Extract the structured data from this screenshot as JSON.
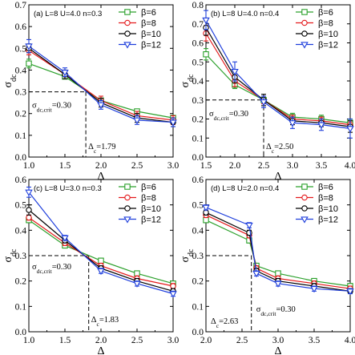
{
  "chart_data": [
    {
      "type": "line",
      "panel_label": "(a) L=8 U=4.0 n=0.3",
      "xlabel": "Δ",
      "ylabel": "σ",
      "ylabel_sub": "dc",
      "xlim": [
        1.0,
        3.0
      ],
      "ylim": [
        0.0,
        0.7
      ],
      "xticks": [
        "1.0",
        "1.5",
        "2.0",
        "2.5",
        "3.0"
      ],
      "yticks": [
        "0.0",
        "0.1",
        "0.2",
        "0.3",
        "0.4",
        "0.5",
        "0.6",
        "0.7"
      ],
      "crit_x": 1.79,
      "crit_y": 0.3,
      "crit_sigma_label": "σ",
      "crit_sigma_sub": "dc,crit",
      "crit_sigma_value": "=0.30",
      "crit_delta_label": "Δ",
      "crit_delta_sub": "c",
      "crit_delta_value": "=1.79",
      "legend_position": "top-right",
      "series": [
        {
          "name": "β=6",
          "color": "#2ca02c",
          "marker": "square",
          "x": [
            1.0,
            1.5,
            2.0,
            2.5,
            3.0
          ],
          "y": [
            0.43,
            0.37,
            0.26,
            0.21,
            0.18
          ],
          "err": [
            0.02,
            0.01,
            0.01,
            0.01,
            0.01
          ]
        },
        {
          "name": "β=8",
          "color": "#e41a1c",
          "marker": "circle",
          "x": [
            1.0,
            1.5,
            2.0,
            2.5,
            3.0
          ],
          "y": [
            0.49,
            0.38,
            0.26,
            0.19,
            0.17
          ],
          "err": [
            0.02,
            0.01,
            0.02,
            0.02,
            0.02
          ]
        },
        {
          "name": "β=10",
          "color": "#000000",
          "marker": "circle",
          "x": [
            1.0,
            1.5,
            2.0,
            2.5,
            3.0
          ],
          "y": [
            0.5,
            0.38,
            0.25,
            0.18,
            0.16
          ],
          "err": [
            0.02,
            0.02,
            0.02,
            0.02,
            0.02
          ]
        },
        {
          "name": "β=12",
          "color": "#1f3fdc",
          "marker": "triangle-down",
          "x": [
            1.0,
            1.5,
            2.0,
            2.5,
            3.0
          ],
          "y": [
            0.51,
            0.39,
            0.24,
            0.17,
            0.16
          ],
          "err": [
            0.03,
            0.02,
            0.02,
            0.02,
            0.02
          ]
        }
      ]
    },
    {
      "type": "line",
      "panel_label": "(b) L=8 U=4.0 n=0.4",
      "xlabel": "Δ",
      "ylabel": "σ",
      "ylabel_sub": "dc",
      "xlim": [
        1.5,
        4.0
      ],
      "ylim": [
        0.0,
        0.8
      ],
      "xticks": [
        "1.5",
        "2.0",
        "2.5",
        "3.0",
        "3.5",
        "4.0"
      ],
      "yticks": [
        "0.0",
        "0.1",
        "0.2",
        "0.3",
        "0.4",
        "0.5",
        "0.6",
        "0.7",
        "0.8"
      ],
      "crit_x": 2.5,
      "crit_y": 0.3,
      "crit_sigma_label": "σ",
      "crit_sigma_sub": "dc,crit",
      "crit_sigma_value": "=0.30",
      "crit_delta_label": "Δ",
      "crit_delta_sub": "c",
      "crit_delta_value": "=2.50",
      "legend_position": "top-right",
      "series": [
        {
          "name": "β=6",
          "color": "#2ca02c",
          "marker": "square",
          "x": [
            1.5,
            2.0,
            2.5,
            3.0,
            3.5,
            4.0
          ],
          "y": [
            0.54,
            0.38,
            0.3,
            0.21,
            0.2,
            0.18
          ],
          "err": [
            0.03,
            0.02,
            0.02,
            0.02,
            0.02,
            0.02
          ]
        },
        {
          "name": "β=8",
          "color": "#e41a1c",
          "marker": "circle",
          "x": [
            1.5,
            2.0,
            2.5,
            3.0,
            3.5,
            4.0
          ],
          "y": [
            0.65,
            0.4,
            0.3,
            0.2,
            0.19,
            0.17
          ],
          "err": [
            0.04,
            0.03,
            0.02,
            0.02,
            0.02,
            0.02
          ]
        },
        {
          "name": "β=10",
          "color": "#000000",
          "marker": "circle",
          "x": [
            1.5,
            2.0,
            2.5,
            3.0,
            3.5,
            4.0
          ],
          "y": [
            0.68,
            0.42,
            0.3,
            0.19,
            0.18,
            0.16
          ],
          "err": [
            0.04,
            0.03,
            0.03,
            0.02,
            0.02,
            0.03
          ]
        },
        {
          "name": "β=12",
          "color": "#1f3fdc",
          "marker": "triangle-down",
          "x": [
            1.5,
            2.0,
            2.5,
            3.0,
            3.5,
            4.0
          ],
          "y": [
            0.72,
            0.45,
            0.29,
            0.18,
            0.17,
            0.15
          ],
          "err": [
            0.05,
            0.05,
            0.03,
            0.03,
            0.03,
            0.05
          ]
        }
      ]
    },
    {
      "type": "line",
      "panel_label": "(c) L=8 U=3.0 n=0.3",
      "xlabel": "Δ",
      "ylabel": "σ",
      "ylabel_sub": "dc",
      "xlim": [
        1.0,
        3.0
      ],
      "ylim": [
        0.0,
        0.6
      ],
      "xticks": [
        "1.0",
        "1.5",
        "2.0",
        "2.5",
        "3.0"
      ],
      "yticks": [
        "0.0",
        "0.1",
        "0.2",
        "0.3",
        "0.4",
        "0.5",
        "0.6"
      ],
      "crit_x": 1.83,
      "crit_y": 0.3,
      "crit_sigma_label": "σ",
      "crit_sigma_sub": "dc,crit",
      "crit_sigma_value": "=0.30",
      "crit_delta_label": "Δ",
      "crit_delta_sub": "c",
      "crit_delta_value": "=1.83",
      "legend_position": "top-right",
      "series": [
        {
          "name": "β=6",
          "color": "#2ca02c",
          "marker": "square",
          "x": [
            1.0,
            1.5,
            2.0,
            2.5,
            3.0
          ],
          "y": [
            0.44,
            0.34,
            0.28,
            0.23,
            0.19
          ],
          "err": [
            0.01,
            0.01,
            0.01,
            0.01,
            0.01
          ]
        },
        {
          "name": "β=8",
          "color": "#e41a1c",
          "marker": "circle",
          "x": [
            1.0,
            1.5,
            2.0,
            2.5,
            3.0
          ],
          "y": [
            0.45,
            0.35,
            0.26,
            0.21,
            0.18
          ],
          "err": [
            0.01,
            0.01,
            0.01,
            0.01,
            0.01
          ]
        },
        {
          "name": "β=10",
          "color": "#000000",
          "marker": "circle",
          "x": [
            1.0,
            1.5,
            2.0,
            2.5,
            3.0
          ],
          "y": [
            0.48,
            0.36,
            0.25,
            0.2,
            0.16
          ],
          "err": [
            0.02,
            0.01,
            0.01,
            0.01,
            0.01
          ]
        },
        {
          "name": "β=12",
          "color": "#1f3fdc",
          "marker": "triangle-down",
          "x": [
            1.0,
            1.5,
            2.0,
            2.5,
            3.0
          ],
          "y": [
            0.55,
            0.37,
            0.24,
            0.19,
            0.15
          ],
          "err": [
            0.02,
            0.01,
            0.01,
            0.01,
            0.01
          ]
        }
      ]
    },
    {
      "type": "line",
      "panel_label": "(d) L=8 U=2.0 n=0.4",
      "xlabel": "Δ",
      "ylabel": "σ",
      "ylabel_sub": "dc",
      "xlim": [
        2.0,
        4.0
      ],
      "ylim": [
        0.0,
        0.6
      ],
      "xticks": [
        "2.0",
        "2.5",
        "3.0",
        "3.5",
        "4.0"
      ],
      "yticks": [
        "0.0",
        "0.1",
        "0.2",
        "0.3",
        "0.4",
        "0.5",
        "0.6"
      ],
      "crit_x": 2.63,
      "crit_y": 0.3,
      "crit_sigma_label": "σ",
      "crit_sigma_sub": "dc,crit",
      "crit_sigma_value": "=0.30",
      "crit_delta_label": "Δ",
      "crit_delta_sub": "c",
      "crit_delta_value": "=2.63",
      "legend_position": "top-right",
      "series": [
        {
          "name": "β=6",
          "color": "#2ca02c",
          "marker": "square",
          "x": [
            2.0,
            2.6,
            2.7,
            3.0,
            3.5,
            4.0
          ],
          "y": [
            0.44,
            0.36,
            0.26,
            0.23,
            0.2,
            0.18
          ],
          "err": [
            0.01,
            0.01,
            0.01,
            0.01,
            0.01,
            0.01
          ]
        },
        {
          "name": "β=8",
          "color": "#e41a1c",
          "marker": "circle",
          "x": [
            2.0,
            2.6,
            2.7,
            3.0,
            3.5,
            4.0
          ],
          "y": [
            0.46,
            0.38,
            0.25,
            0.21,
            0.19,
            0.17
          ],
          "err": [
            0.01,
            0.01,
            0.01,
            0.01,
            0.01,
            0.01
          ]
        },
        {
          "name": "β=10",
          "color": "#000000",
          "marker": "circle",
          "x": [
            2.0,
            2.6,
            2.7,
            3.0,
            3.5,
            4.0
          ],
          "y": [
            0.47,
            0.39,
            0.24,
            0.2,
            0.18,
            0.16
          ],
          "err": [
            0.01,
            0.01,
            0.01,
            0.01,
            0.01,
            0.01
          ]
        },
        {
          "name": "β=12",
          "color": "#1f3fdc",
          "marker": "triangle-down",
          "x": [
            2.0,
            2.6,
            2.7,
            3.0,
            3.5,
            4.0
          ],
          "y": [
            0.49,
            0.42,
            0.23,
            0.19,
            0.17,
            0.16
          ],
          "err": [
            0.01,
            0.01,
            0.01,
            0.01,
            0.01,
            0.01
          ]
        }
      ]
    }
  ]
}
